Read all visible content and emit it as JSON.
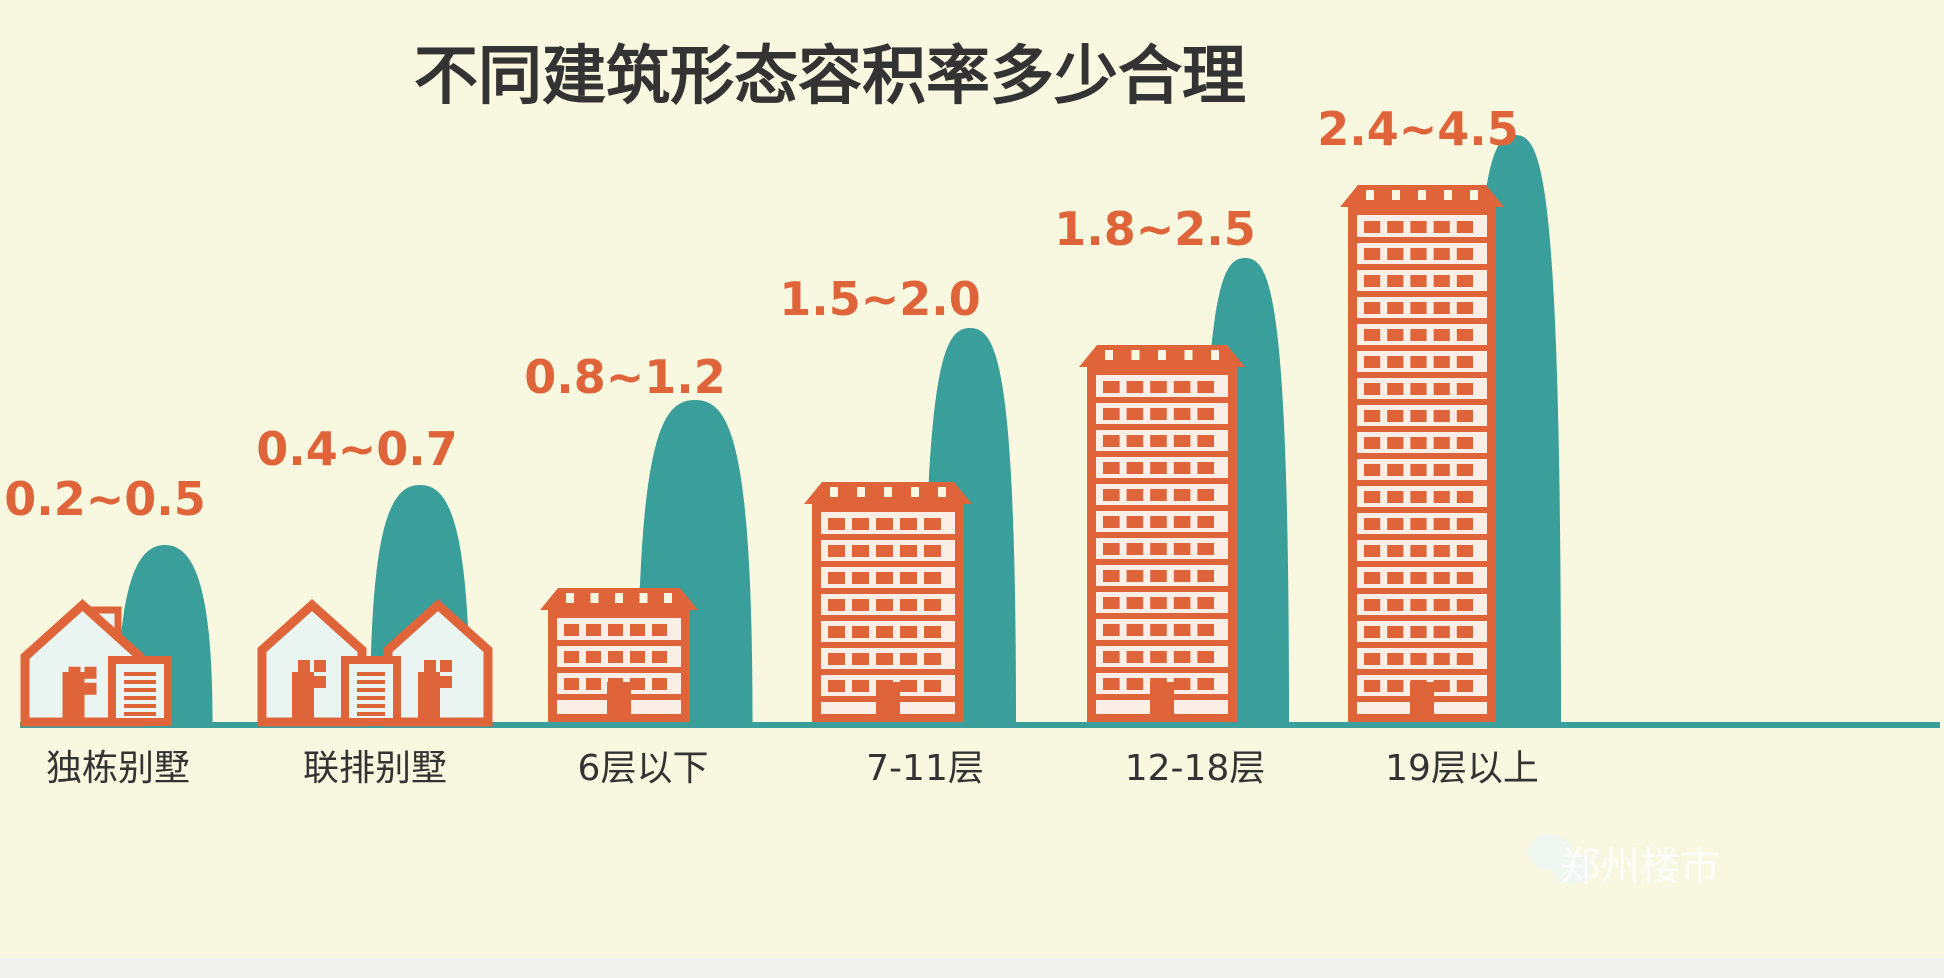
{
  "chart_data": {
    "type": "bar",
    "title": "不同建筑形态容积率多少合理",
    "categories": [
      "独栋别墅",
      "联排别墅",
      "6层以下",
      "7-11层",
      "12-18层",
      "19层以上"
    ],
    "series": [
      {
        "values_low": [
          0.2,
          0.4,
          0.8,
          1.5,
          1.8,
          2.4
        ],
        "values_high": [
          0.5,
          0.7,
          1.2,
          2.0,
          2.5,
          4.5
        ]
      }
    ],
    "value_labels": [
      "0.2~0.5",
      "0.4~0.7",
      "0.8~1.2",
      "1.5~2.0",
      "1.8~2.5",
      "2.4~4.5"
    ],
    "grid": false,
    "legend": "none"
  },
  "watermark": "郑州楼市",
  "colors": {
    "background": "#f7f8df",
    "building": "#e0643a",
    "tree": "#3a9e9a",
    "label": "#e0643a",
    "title": "#333333",
    "ground": "#3a9e9a"
  }
}
